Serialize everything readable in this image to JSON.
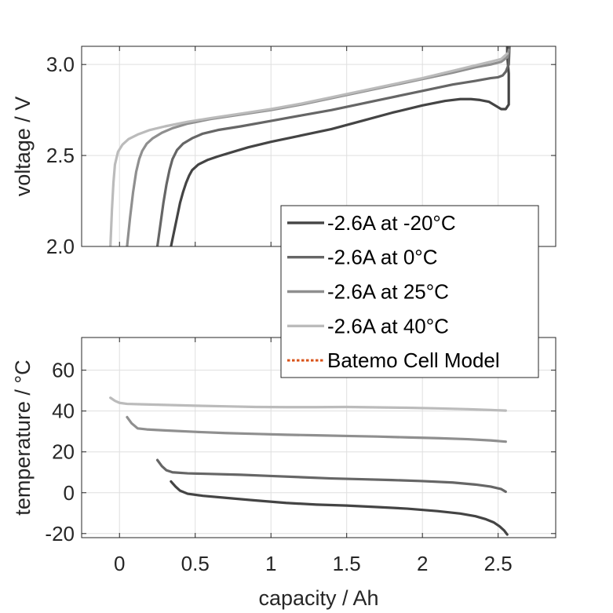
{
  "chart_data": [
    {
      "id": "voltage",
      "type": "line",
      "ylabel": "voltage / V",
      "xlim": [
        -0.25,
        2.88
      ],
      "ylim": [
        2.0,
        3.1
      ],
      "xticks": [
        0,
        0.5,
        1,
        1.5,
        2,
        2.5
      ],
      "yticks": [
        2.0,
        2.5,
        3.0
      ],
      "ytick_labels": [
        "2.0",
        "2.5",
        "3.0"
      ],
      "grid": true,
      "show_xtick_labels": false,
      "legend_position": "lower-right",
      "series": [
        {
          "name": "-2.6A at -20°C",
          "color": "#444444",
          "x": [
            0.34,
            0.36,
            0.38,
            0.4,
            0.42,
            0.44,
            0.46,
            0.48,
            0.52,
            0.58,
            0.65,
            0.75,
            0.85,
            1.0,
            1.2,
            1.4,
            1.6,
            1.8,
            2.0,
            2.15,
            2.25,
            2.32,
            2.38,
            2.44,
            2.49,
            2.52,
            2.55,
            2.57,
            2.57,
            2.56,
            2.56
          ],
          "y": [
            2.0,
            2.08,
            2.16,
            2.24,
            2.3,
            2.35,
            2.39,
            2.42,
            2.45,
            2.475,
            2.495,
            2.52,
            2.545,
            2.575,
            2.61,
            2.645,
            2.69,
            2.735,
            2.775,
            2.8,
            2.81,
            2.81,
            2.805,
            2.795,
            2.77,
            2.755,
            2.755,
            2.78,
            2.95,
            3.05,
            3.1
          ]
        },
        {
          "name": "-2.6A at 0°C",
          "color": "#666666",
          "x": [
            0.25,
            0.27,
            0.29,
            0.31,
            0.33,
            0.35,
            0.38,
            0.42,
            0.48,
            0.55,
            0.65,
            0.8,
            1.0,
            1.2,
            1.4,
            1.6,
            1.8,
            2.0,
            2.2,
            2.35,
            2.45,
            2.5,
            2.53,
            2.55,
            2.57,
            2.575
          ],
          "y": [
            2.0,
            2.12,
            2.24,
            2.34,
            2.42,
            2.48,
            2.53,
            2.565,
            2.595,
            2.62,
            2.64,
            2.66,
            2.69,
            2.72,
            2.75,
            2.785,
            2.82,
            2.855,
            2.89,
            2.91,
            2.925,
            2.93,
            2.94,
            2.96,
            3.0,
            3.1
          ]
        },
        {
          "name": "-2.6A at 25°C",
          "color": "#8f8f8f",
          "x": [
            0.05,
            0.07,
            0.09,
            0.11,
            0.13,
            0.15,
            0.18,
            0.22,
            0.28,
            0.35,
            0.45,
            0.6,
            0.8,
            1.0,
            1.2,
            1.4,
            1.6,
            1.8,
            2.0,
            2.2,
            2.35,
            2.45,
            2.52,
            2.56,
            2.57
          ],
          "y": [
            2.0,
            2.16,
            2.3,
            2.41,
            2.48,
            2.525,
            2.565,
            2.595,
            2.625,
            2.65,
            2.675,
            2.7,
            2.725,
            2.75,
            2.78,
            2.815,
            2.85,
            2.885,
            2.92,
            2.955,
            2.985,
            3.0,
            3.015,
            3.04,
            3.08
          ]
        },
        {
          "name": "-2.6A at 40°C",
          "color": "#bbbbbb",
          "x": [
            -0.06,
            -0.05,
            -0.04,
            -0.03,
            -0.01,
            0.02,
            0.06,
            0.12,
            0.2,
            0.3,
            0.45,
            0.6,
            0.8,
            1.0,
            1.2,
            1.4,
            1.6,
            1.8,
            2.0,
            2.2,
            2.35,
            2.45,
            2.52,
            2.56
          ],
          "y": [
            2.0,
            2.2,
            2.35,
            2.45,
            2.52,
            2.56,
            2.59,
            2.615,
            2.64,
            2.66,
            2.685,
            2.705,
            2.73,
            2.755,
            2.785,
            2.82,
            2.855,
            2.89,
            2.925,
            2.965,
            2.995,
            3.015,
            3.03,
            3.06
          ]
        },
        {
          "name": "Batemo Cell Model",
          "color": "#d95319",
          "dashed": true,
          "x": [],
          "y": []
        }
      ]
    },
    {
      "id": "temperature",
      "type": "line",
      "xlabel": "capacity / Ah",
      "ylabel": "temperature / °C",
      "xlim": [
        -0.25,
        2.88
      ],
      "ylim": [
        -22,
        76
      ],
      "xticks": [
        0,
        0.5,
        1,
        1.5,
        2,
        2.5
      ],
      "xtick_labels": [
        "0",
        "0.5",
        "1",
        "1.5",
        "2",
        "2.5"
      ],
      "yticks": [
        -20,
        0,
        20,
        40,
        60
      ],
      "ytick_labels": [
        "-20",
        "0",
        "20",
        "40",
        "60"
      ],
      "grid": true,
      "series": [
        {
          "name": "-2.6A at -20°C",
          "color": "#444444",
          "x": [
            0.34,
            0.37,
            0.4,
            0.45,
            0.55,
            0.7,
            0.9,
            1.1,
            1.3,
            1.5,
            1.7,
            1.9,
            2.1,
            2.25,
            2.35,
            2.42,
            2.47,
            2.51,
            2.54,
            2.56
          ],
          "y": [
            5.5,
            3.0,
            1.0,
            -0.5,
            -1.5,
            -2.5,
            -3.8,
            -5.0,
            -5.8,
            -6.3,
            -7.0,
            -7.8,
            -9.0,
            -10.2,
            -11.5,
            -13.0,
            -14.5,
            -16.5,
            -18.5,
            -20.5
          ]
        },
        {
          "name": "-2.6A at 0°C",
          "color": "#666666",
          "x": [
            0.25,
            0.28,
            0.31,
            0.35,
            0.45,
            0.6,
            0.8,
            1.0,
            1.2,
            1.4,
            1.6,
            1.8,
            2.0,
            2.2,
            2.35,
            2.45,
            2.52,
            2.55
          ],
          "y": [
            16.0,
            13.0,
            11.0,
            10.0,
            9.5,
            9.2,
            8.8,
            8.2,
            7.6,
            7.0,
            6.6,
            6.2,
            5.7,
            5.0,
            4.0,
            3.0,
            1.8,
            0.5
          ]
        },
        {
          "name": "-2.6A at 25°C",
          "color": "#8f8f8f",
          "x": [
            0.05,
            0.08,
            0.12,
            0.18,
            0.3,
            0.5,
            0.7,
            0.9,
            1.1,
            1.3,
            1.5,
            1.7,
            1.9,
            2.1,
            2.3,
            2.45,
            2.55
          ],
          "y": [
            37.0,
            34.0,
            31.5,
            31.0,
            30.5,
            29.8,
            29.2,
            28.8,
            28.4,
            28.1,
            27.8,
            27.5,
            27.1,
            26.7,
            26.2,
            25.6,
            25.0
          ]
        },
        {
          "name": "-2.6A at 40°C",
          "color": "#bbbbbb",
          "x": [
            -0.06,
            -0.03,
            0.0,
            0.05,
            0.15,
            0.3,
            0.5,
            0.7,
            0.9,
            1.1,
            1.3,
            1.5,
            1.7,
            1.9,
            2.1,
            2.3,
            2.45,
            2.55
          ],
          "y": [
            46.5,
            45.0,
            44.0,
            43.5,
            43.3,
            43.0,
            42.6,
            42.3,
            42.0,
            41.9,
            41.9,
            42.0,
            41.8,
            41.6,
            41.3,
            40.9,
            40.5,
            40.2
          ]
        }
      ]
    }
  ]
}
